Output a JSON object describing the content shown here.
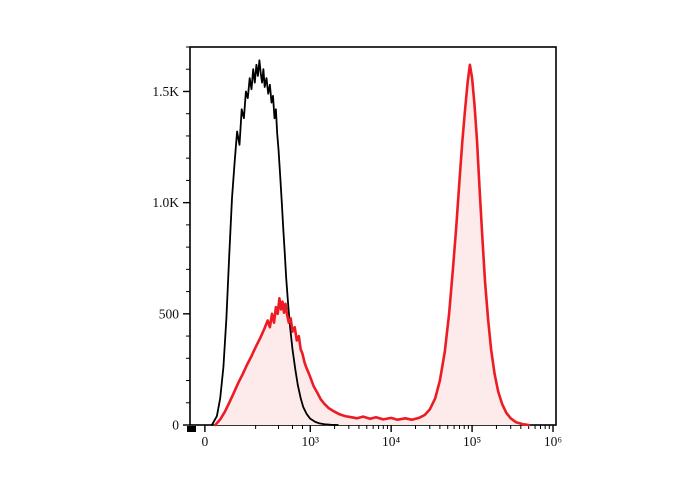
{
  "chart_data": {
    "type": "line",
    "subtype": "flow-cytometry-histogram-overlay",
    "title": "",
    "xlabel": "",
    "ylabel": "",
    "grid": false,
    "legend": "none",
    "ylim": [
      0,
      1700
    ],
    "y_ticks": [
      {
        "value": 0,
        "label": "0"
      },
      {
        "value": 500,
        "label": "500"
      },
      {
        "value": 1000,
        "label": "1.0K"
      },
      {
        "value": 1500,
        "label": "1.5K"
      }
    ],
    "y_minor_ticks": [
      100,
      200,
      300,
      400,
      600,
      700,
      800,
      900,
      1100,
      1200,
      1300,
      1400,
      1600,
      1700
    ],
    "x_ticks": [
      {
        "value": 0,
        "label": "0"
      },
      {
        "value": 1000,
        "label": "10³"
      },
      {
        "value": 10000,
        "label": "10⁴"
      },
      {
        "value": 100000,
        "label": "10⁵"
      },
      {
        "value": 1000000,
        "label": "10⁶"
      }
    ],
    "x_minor_ticks": [
      200,
      400,
      600,
      800,
      2000,
      3000,
      4000,
      5000,
      6000,
      7000,
      8000,
      9000,
      20000,
      30000,
      40000,
      50000,
      60000,
      70000,
      80000,
      90000,
      200000,
      300000,
      400000,
      500000,
      600000,
      700000,
      800000,
      900000
    ],
    "x_scale": {
      "type": "arcsinh",
      "s": 100,
      "u0": 0.041,
      "k": 0.09684
    },
    "frame_color": "#000000",
    "series": [
      {
        "name": "black-open-histogram-control",
        "color": "#000000",
        "fill": "none",
        "line_width": 1.8,
        "points": [
          [
            20,
            0
          ],
          [
            35,
            40
          ],
          [
            45,
            120
          ],
          [
            55,
            260
          ],
          [
            65,
            480
          ],
          [
            75,
            760
          ],
          [
            85,
            1020
          ],
          [
            95,
            1180
          ],
          [
            105,
            1320
          ],
          [
            115,
            1260
          ],
          [
            125,
            1420
          ],
          [
            135,
            1380
          ],
          [
            145,
            1500
          ],
          [
            155,
            1470
          ],
          [
            165,
            1560
          ],
          [
            175,
            1510
          ],
          [
            185,
            1600
          ],
          [
            195,
            1540
          ],
          [
            205,
            1620
          ],
          [
            215,
            1570
          ],
          [
            225,
            1640
          ],
          [
            235,
            1580
          ],
          [
            245,
            1540
          ],
          [
            255,
            1600
          ],
          [
            265,
            1520
          ],
          [
            280,
            1560
          ],
          [
            295,
            1490
          ],
          [
            310,
            1530
          ],
          [
            325,
            1450
          ],
          [
            340,
            1480
          ],
          [
            355,
            1380
          ],
          [
            370,
            1420
          ],
          [
            385,
            1310
          ],
          [
            400,
            1240
          ],
          [
            420,
            1120
          ],
          [
            440,
            1000
          ],
          [
            460,
            880
          ],
          [
            480,
            770
          ],
          [
            500,
            660
          ],
          [
            530,
            540
          ],
          [
            560,
            440
          ],
          [
            600,
            340
          ],
          [
            650,
            250
          ],
          [
            700,
            180
          ],
          [
            760,
            120
          ],
          [
            820,
            80
          ],
          [
            900,
            50
          ],
          [
            1000,
            28
          ],
          [
            1150,
            14
          ],
          [
            1300,
            7
          ],
          [
            1500,
            3
          ],
          [
            1800,
            1
          ],
          [
            2200,
            0
          ]
        ]
      },
      {
        "name": "red-filled-histogram-stained",
        "color": "#ed1c24",
        "fill": "#fdeaea",
        "line_width": 2.6,
        "points": [
          [
            30,
            0
          ],
          [
            45,
            25
          ],
          [
            60,
            60
          ],
          [
            75,
            100
          ],
          [
            90,
            140
          ],
          [
            110,
            190
          ],
          [
            130,
            230
          ],
          [
            150,
            270
          ],
          [
            175,
            310
          ],
          [
            200,
            350
          ],
          [
            230,
            390
          ],
          [
            260,
            430
          ],
          [
            290,
            470
          ],
          [
            310,
            440
          ],
          [
            330,
            500
          ],
          [
            350,
            460
          ],
          [
            370,
            530
          ],
          [
            390,
            500
          ],
          [
            410,
            570
          ],
          [
            430,
            520
          ],
          [
            450,
            555
          ],
          [
            470,
            505
          ],
          [
            490,
            545
          ],
          [
            510,
            500
          ],
          [
            540,
            460
          ],
          [
            570,
            480
          ],
          [
            600,
            420
          ],
          [
            640,
            440
          ],
          [
            680,
            380
          ],
          [
            720,
            400
          ],
          [
            760,
            340
          ],
          [
            800,
            320
          ],
          [
            850,
            280
          ],
          [
            900,
            255
          ],
          [
            950,
            235
          ],
          [
            1000,
            215
          ],
          [
            1100,
            175
          ],
          [
            1200,
            150
          ],
          [
            1350,
            115
          ],
          [
            1500,
            95
          ],
          [
            1700,
            75
          ],
          [
            2000,
            60
          ],
          [
            2300,
            48
          ],
          [
            2700,
            40
          ],
          [
            3200,
            35
          ],
          [
            3800,
            30
          ],
          [
            4500,
            38
          ],
          [
            5500,
            28
          ],
          [
            6500,
            35
          ],
          [
            8000,
            25
          ],
          [
            10000,
            32
          ],
          [
            12000,
            24
          ],
          [
            15000,
            30
          ],
          [
            18000,
            24
          ],
          [
            22000,
            32
          ],
          [
            26000,
            45
          ],
          [
            30000,
            70
          ],
          [
            35000,
            120
          ],
          [
            40000,
            200
          ],
          [
            46000,
            330
          ],
          [
            52000,
            500
          ],
          [
            58000,
            700
          ],
          [
            64000,
            900
          ],
          [
            70000,
            1100
          ],
          [
            76000,
            1280
          ],
          [
            82000,
            1420
          ],
          [
            88000,
            1540
          ],
          [
            94000,
            1620
          ],
          [
            100000,
            1560
          ],
          [
            107000,
            1440
          ],
          [
            115000,
            1280
          ],
          [
            124000,
            1060
          ],
          [
            134000,
            840
          ],
          [
            145000,
            640
          ],
          [
            158000,
            470
          ],
          [
            172000,
            340
          ],
          [
            190000,
            230
          ],
          [
            210000,
            150
          ],
          [
            235000,
            95
          ],
          [
            265000,
            55
          ],
          [
            300000,
            30
          ],
          [
            350000,
            12
          ],
          [
            420000,
            4
          ],
          [
            500000,
            0
          ]
        ]
      }
    ]
  }
}
